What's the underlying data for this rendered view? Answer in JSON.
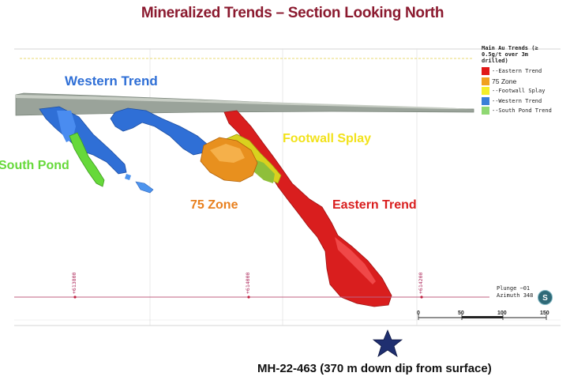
{
  "title": "Mineralized Trends – Section Looking North",
  "labels": {
    "western_trend": "Western Trend",
    "south_pond": "South Pond",
    "footwall_splay": "Footwall Splay",
    "zone75": "75 Zone",
    "eastern_trend": "Eastern Trend"
  },
  "legend": {
    "heading": "Main Au Trends (≥ 0.5g/t over 3m drilled)",
    "items": [
      {
        "label": "--Eastern  Trend",
        "color": "#e01818"
      },
      {
        "label": "75 Zone",
        "color": "#f0a020"
      },
      {
        "label": "--Footwall  Splay",
        "color": "#f5ee2a"
      },
      {
        "label": "--Western  Trend",
        "color": "#3a7fd8"
      },
      {
        "label": "--South  Pond  Trend",
        "color": "#8fd873"
      }
    ]
  },
  "easting_ticks": [
    "+613800",
    "+614000",
    "+614200"
  ],
  "plunge_text": "Plunge −01",
  "azimuth_text": "Azimuth 348",
  "compass_letter": "S",
  "scale_labels": [
    "0",
    "50",
    "100",
    "150"
  ],
  "caption": "MH-22-463  (370 m down dip from surface)",
  "colors": {
    "title": "#8b1a2f",
    "western": "#2f6fd6",
    "south_pond": "#66d93a",
    "footwall": "#f2e21a",
    "zone75": "#e8801e",
    "eastern": "#d91e1e"
  }
}
